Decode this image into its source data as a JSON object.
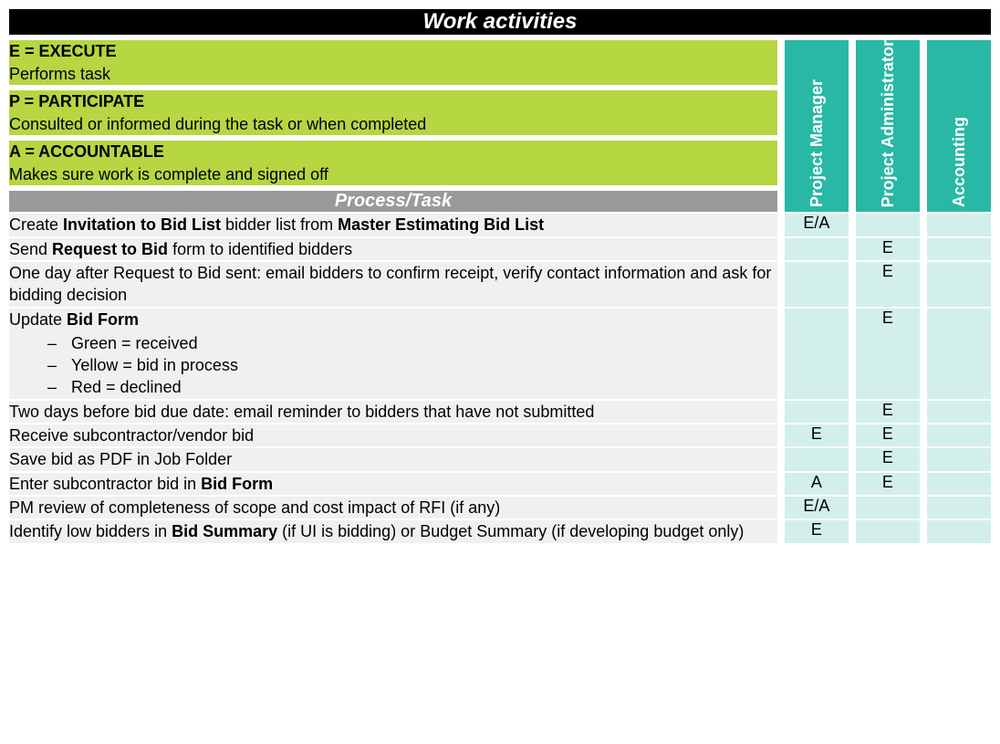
{
  "title": "Work activities",
  "legend": [
    {
      "code": "E = EXECUTE",
      "desc": "Performs task"
    },
    {
      "code": "P = PARTICIPATE",
      "desc": "Consulted or informed during the task or when completed"
    },
    {
      "code": "A = ACCOUNTABLE",
      "desc": "Makes sure work is complete and signed off"
    }
  ],
  "roles": [
    "Project Manager",
    "Project Administrator",
    "Accounting"
  ],
  "section_header": "Process/Task",
  "tasks": [
    {
      "html": "Create <b>Invitation to Bid List</b> bidder list from <b>Master Estimating Bid List</b>",
      "vals": [
        "E/A",
        "",
        ""
      ]
    },
    {
      "html": "Send <b>Request to Bid</b> form to identified bidders",
      "vals": [
        "",
        "E",
        ""
      ]
    },
    {
      "html": "One day after Request to Bid sent: email bidders to confirm receipt, verify contact information and ask for bidding decision",
      "vals": [
        "",
        "E",
        ""
      ]
    },
    {
      "html": "Update <b>Bid Form</b>",
      "sub": [
        "Green = received",
        "Yellow = bid in process",
        "Red = declined"
      ],
      "vals": [
        "",
        "E",
        ""
      ]
    },
    {
      "html": "Two days before bid due date: email reminder to bidders that have not submitted",
      "vals": [
        "",
        "E",
        ""
      ]
    },
    {
      "html": "Receive subcontractor/vendor bid",
      "vals": [
        "E",
        "E",
        ""
      ]
    },
    {
      "html": "Save bid as PDF in Job Folder",
      "vals": [
        "",
        "E",
        ""
      ]
    },
    {
      "html": "Enter subcontractor bid in <b>Bid Form</b>",
      "vals": [
        "A",
        "E",
        ""
      ]
    },
    {
      "html": "PM review of completeness of scope and cost impact of RFI (if any)",
      "vals": [
        "E/A",
        "",
        ""
      ]
    },
    {
      "html": "Identify low bidders in <b>Bid Summary</b> (if UI is bidding) or Budget Summary (if developing budget only)",
      "vals": [
        "E",
        "",
        ""
      ]
    }
  ],
  "colors": {
    "title_bg": "#000000",
    "legend_bg": "#b6d642",
    "role_bg": "#29b8a5",
    "section_bg": "#9a9a9a",
    "task_bg": "#eff0f2",
    "val_bg": "#d3efec"
  }
}
